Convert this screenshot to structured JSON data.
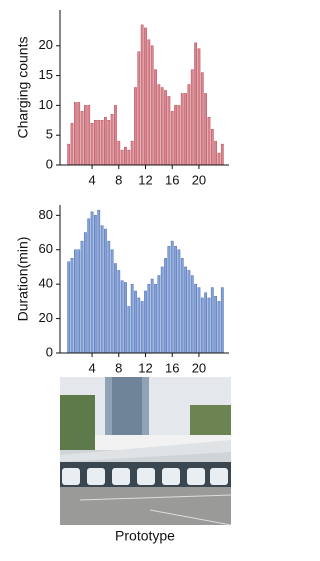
{
  "chart_data": [
    {
      "type": "bar",
      "ylabel": "Charging counts",
      "color": "#d88890",
      "edge": "#b94c58",
      "x": [
        0.5,
        1,
        1.5,
        2,
        2.5,
        3,
        3.5,
        4,
        4.5,
        5,
        5.5,
        6,
        6.5,
        7,
        7.5,
        8,
        8.5,
        9,
        9.5,
        10,
        10.5,
        11,
        11.5,
        12,
        12.5,
        13,
        13.5,
        14,
        14.5,
        15,
        15.5,
        16,
        16.5,
        17,
        17.5,
        18,
        18.5,
        19,
        19.5,
        20,
        20.5,
        21,
        21.5,
        22,
        22.5,
        23,
        23.5
      ],
      "values": [
        3.5,
        7,
        10.5,
        10.5,
        9,
        10,
        10,
        7,
        7.5,
        7.5,
        7.5,
        8,
        7.5,
        8.5,
        10,
        4,
        2.5,
        3,
        2.5,
        4,
        13,
        19,
        23.5,
        23,
        21,
        20,
        16,
        13.5,
        13,
        12.5,
        11.5,
        9,
        10,
        10,
        12,
        12,
        13.5,
        16,
        20.5,
        19.5,
        15.5,
        12,
        8,
        6,
        4,
        2,
        3.5
      ],
      "xlim": [
        -0.8,
        24.5
      ],
      "xticks": [
        4,
        8,
        12,
        16,
        20
      ],
      "ylim": [
        0,
        26
      ],
      "yticks": [
        0,
        5,
        10,
        15,
        20
      ]
    },
    {
      "type": "bar",
      "ylabel": "Duration(min)",
      "color": "#86a3d8",
      "edge": "#4a6cb3",
      "x": [
        0.5,
        1,
        1.5,
        2,
        2.5,
        3,
        3.5,
        4,
        4.5,
        5,
        5.5,
        6,
        6.5,
        7,
        7.5,
        8,
        8.5,
        9,
        9.5,
        10,
        10.5,
        11,
        11.5,
        12,
        12.5,
        13,
        13.5,
        14,
        14.5,
        15,
        15.5,
        16,
        16.5,
        17,
        17.5,
        18,
        18.5,
        19,
        19.5,
        20,
        20.5,
        21,
        21.5,
        22,
        22.5,
        23,
        23.5
      ],
      "values": [
        53,
        55,
        60,
        60,
        65,
        70,
        78,
        82,
        80,
        83,
        74,
        72,
        65,
        60,
        52,
        48,
        42,
        41,
        27,
        40,
        36,
        32,
        30,
        36,
        40,
        43,
        40,
        45,
        50,
        55,
        62,
        65,
        62,
        60,
        55,
        50,
        48,
        45,
        40,
        38,
        32,
        35,
        32,
        38,
        33,
        30,
        38
      ],
      "xlim": [
        -0.8,
        24.5
      ],
      "xticks": [
        4,
        8,
        12,
        16,
        20
      ],
      "ylim": [
        0,
        86
      ],
      "yticks": [
        0,
        20,
        40,
        60,
        80
      ]
    }
  ],
  "figure": {
    "caption": "Prototype"
  }
}
